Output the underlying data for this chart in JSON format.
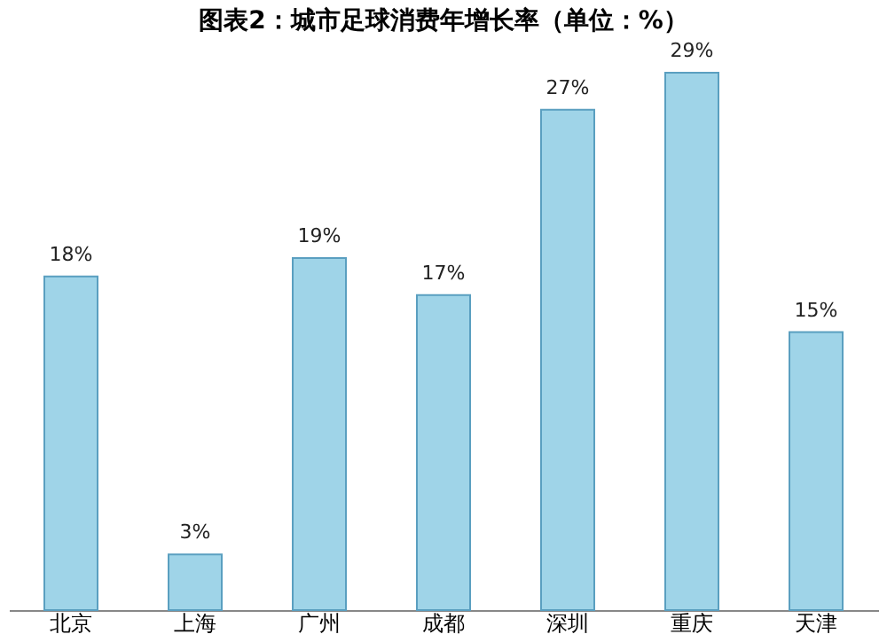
{
  "chart_data": {
    "type": "bar",
    "title": "图表2：城市足球消费年增长率（单位：%）",
    "categories": [
      "北京",
      "上海",
      "广州",
      "成都",
      "深圳",
      "重庆",
      "天津"
    ],
    "values": [
      18,
      3,
      19,
      17,
      27,
      29,
      15
    ],
    "value_labels": [
      "18%",
      "3%",
      "19%",
      "17%",
      "27%",
      "29%",
      "15%"
    ],
    "color": "#9fd4e8",
    "grid": false
  }
}
